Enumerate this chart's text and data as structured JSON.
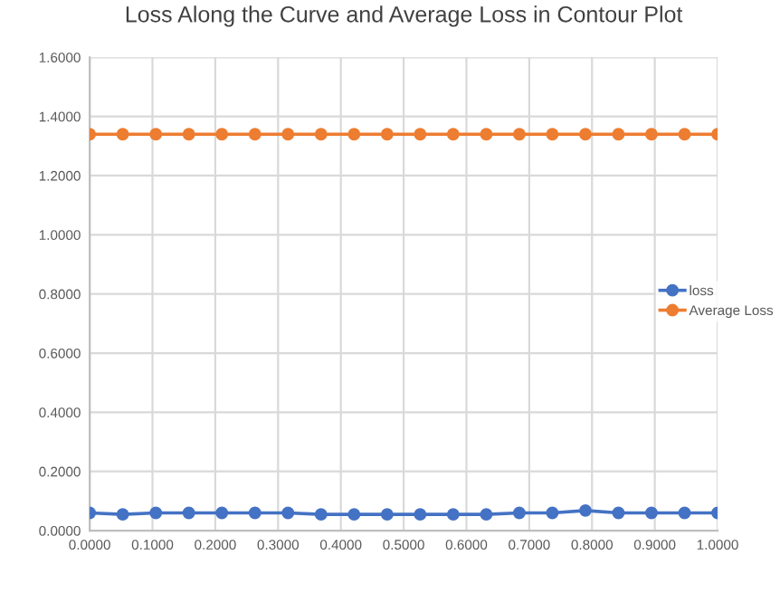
{
  "chart_data": {
    "type": "line",
    "title": "Loss Along the Curve and Average Loss in Contour Plot",
    "x": [
      0,
      0.0526,
      0.1053,
      0.1579,
      0.2105,
      0.2632,
      0.3158,
      0.3684,
      0.4211,
      0.4737,
      0.5263,
      0.5789,
      0.6316,
      0.6842,
      0.7368,
      0.7895,
      0.8421,
      0.8947,
      0.9474,
      1.0
    ],
    "series": [
      {
        "name": "loss",
        "color": "#4472c4",
        "values": [
          0.06,
          0.055,
          0.06,
          0.06,
          0.06,
          0.06,
          0.06,
          0.055,
          0.055,
          0.055,
          0.055,
          0.055,
          0.055,
          0.06,
          0.06,
          0.068,
          0.06,
          0.06,
          0.06,
          0.06
        ]
      },
      {
        "name": "Average Loss",
        "color": "#ed7d31",
        "values": [
          1.34,
          1.34,
          1.34,
          1.34,
          1.34,
          1.34,
          1.34,
          1.34,
          1.34,
          1.34,
          1.34,
          1.34,
          1.34,
          1.34,
          1.34,
          1.34,
          1.34,
          1.34,
          1.34,
          1.34
        ]
      }
    ],
    "xlim": [
      0,
      1.0
    ],
    "xticks": [
      {
        "value": 0,
        "label": "0.0000"
      },
      {
        "value": 0.1,
        "label": "0.1000"
      },
      {
        "value": 0.2,
        "label": "0.2000"
      },
      {
        "value": 0.3,
        "label": "0.3000"
      },
      {
        "value": 0.4,
        "label": "0.4000"
      },
      {
        "value": 0.5,
        "label": "0.5000"
      },
      {
        "value": 0.6,
        "label": "0.6000"
      },
      {
        "value": 0.7,
        "label": "0.7000"
      },
      {
        "value": 0.8,
        "label": "0.8000"
      },
      {
        "value": 0.9,
        "label": "0.9000"
      },
      {
        "value": 1.0,
        "label": "1.0000"
      }
    ],
    "ylim": [
      0,
      1.6
    ],
    "yticks": [
      {
        "value": 0,
        "label": "0.0000"
      },
      {
        "value": 0.2,
        "label": "0.2000"
      },
      {
        "value": 0.4,
        "label": "0.4000"
      },
      {
        "value": 0.6,
        "label": "0.6000"
      },
      {
        "value": 0.8,
        "label": "0.8000"
      },
      {
        "value": 1.0,
        "label": "1.0000"
      },
      {
        "value": 1.2,
        "label": "1.2000"
      },
      {
        "value": 1.4,
        "label": "1.4000"
      },
      {
        "value": 1.6,
        "label": "1.6000"
      }
    ],
    "grid": true,
    "legend": "right",
    "marker": "circle",
    "line_style": "solid"
  }
}
